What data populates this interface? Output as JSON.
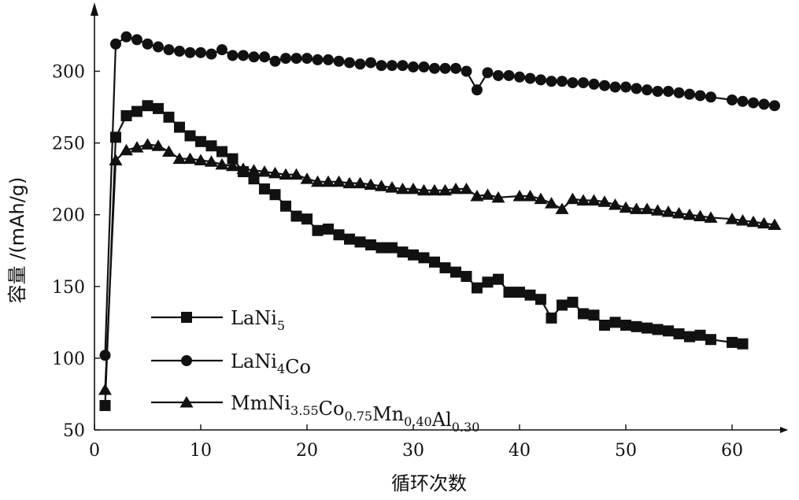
{
  "chart_data": {
    "type": "line",
    "title": "",
    "xlabel": "循环次数",
    "ylabel": "容量 /(mAh/g)",
    "xlim": [
      0,
      65
    ],
    "ylim": [
      50,
      330
    ],
    "xticks": [
      0,
      10,
      20,
      30,
      40,
      50,
      60
    ],
    "yticks": [
      50,
      100,
      150,
      200,
      250,
      300
    ],
    "grid": false,
    "legend_position": "bottom-left",
    "series": [
      {
        "name": "LaNi5",
        "legend_label": {
          "base": "LaNi",
          "sub": "5",
          "rest": ""
        },
        "marker": "square",
        "x": [
          1,
          2,
          3,
          4,
          5,
          6,
          7,
          8,
          9,
          10,
          11,
          12,
          13,
          14,
          15,
          16,
          17,
          18,
          19,
          20,
          21,
          22,
          23,
          24,
          25,
          26,
          27,
          28,
          29,
          30,
          31,
          32,
          33,
          34,
          35,
          36,
          37,
          38,
          39,
          40,
          41,
          42,
          43,
          44,
          45,
          46,
          47,
          48,
          49,
          50,
          51,
          52,
          53,
          54,
          55,
          56,
          57,
          58,
          60,
          61
        ],
        "y": [
          67,
          254,
          269,
          272,
          276,
          274,
          268,
          261,
          255,
          251,
          248,
          244,
          239,
          230,
          225,
          218,
          214,
          206,
          199,
          197,
          189,
          190,
          186,
          183,
          181,
          179,
          177,
          177,
          174,
          172,
          170,
          167,
          163,
          160,
          157,
          149,
          153,
          155,
          146,
          146,
          144,
          141,
          128,
          137,
          139,
          131,
          130,
          123,
          125,
          123,
          122,
          121,
          120,
          119,
          117,
          115,
          116,
          113,
          111,
          110
        ]
      },
      {
        "name": "LaNi4Co",
        "legend_label": {
          "base": "LaNi",
          "sub": "4",
          "rest": "Co"
        },
        "marker": "circle",
        "x": [
          1,
          2,
          3,
          4,
          5,
          6,
          7,
          8,
          9,
          10,
          11,
          12,
          13,
          14,
          15,
          16,
          17,
          18,
          19,
          20,
          21,
          22,
          23,
          24,
          25,
          26,
          27,
          28,
          29,
          30,
          31,
          32,
          33,
          34,
          35,
          36,
          37,
          38,
          39,
          40,
          41,
          42,
          43,
          44,
          45,
          46,
          47,
          48,
          49,
          50,
          51,
          52,
          53,
          54,
          55,
          56,
          57,
          58,
          60,
          61,
          62,
          63,
          64
        ],
        "y": [
          102,
          319,
          324,
          322,
          319,
          317,
          315,
          314,
          313,
          313,
          312,
          315,
          311,
          311,
          310,
          310,
          307,
          309,
          309,
          309,
          308,
          308,
          307,
          306,
          305,
          306,
          304,
          304,
          304,
          303,
          303,
          302,
          302,
          302,
          300,
          287,
          299,
          297,
          297,
          296,
          295,
          294,
          293,
          293,
          292,
          292,
          291,
          290,
          289,
          289,
          288,
          287,
          286,
          286,
          285,
          284,
          283,
          282,
          280,
          279,
          278,
          277,
          276
        ]
      },
      {
        "name": "MmNi3.55Co0.75Mn0.40Al0.30",
        "legend_label": {
          "parts": [
            [
              "MmNi",
              "3.55"
            ],
            [
              "Co",
              "0.75"
            ],
            [
              "Mn",
              "0.40"
            ],
            [
              "Al",
              "0.30"
            ]
          ]
        },
        "marker": "triangle",
        "x": [
          1,
          2,
          3,
          4,
          5,
          6,
          7,
          8,
          9,
          10,
          11,
          12,
          13,
          14,
          15,
          16,
          17,
          18,
          19,
          20,
          21,
          22,
          23,
          24,
          25,
          26,
          27,
          28,
          29,
          30,
          31,
          32,
          33,
          34,
          35,
          36,
          37,
          38,
          40,
          41,
          42,
          43,
          44,
          45,
          46,
          47,
          48,
          49,
          50,
          51,
          52,
          53,
          54,
          55,
          56,
          57,
          58,
          60,
          61,
          62,
          63,
          64
        ],
        "y": [
          78,
          238,
          245,
          247,
          249,
          248,
          244,
          239,
          239,
          238,
          237,
          235,
          234,
          232,
          231,
          230,
          229,
          228,
          228,
          225,
          223,
          223,
          223,
          222,
          222,
          221,
          220,
          219,
          218,
          218,
          217,
          217,
          217,
          218,
          218,
          213,
          214,
          212,
          213,
          213,
          211,
          208,
          204,
          211,
          210,
          210,
          209,
          207,
          205,
          204,
          204,
          203,
          202,
          201,
          200,
          199,
          198,
          197,
          196,
          195,
          194,
          193
        ]
      }
    ]
  }
}
